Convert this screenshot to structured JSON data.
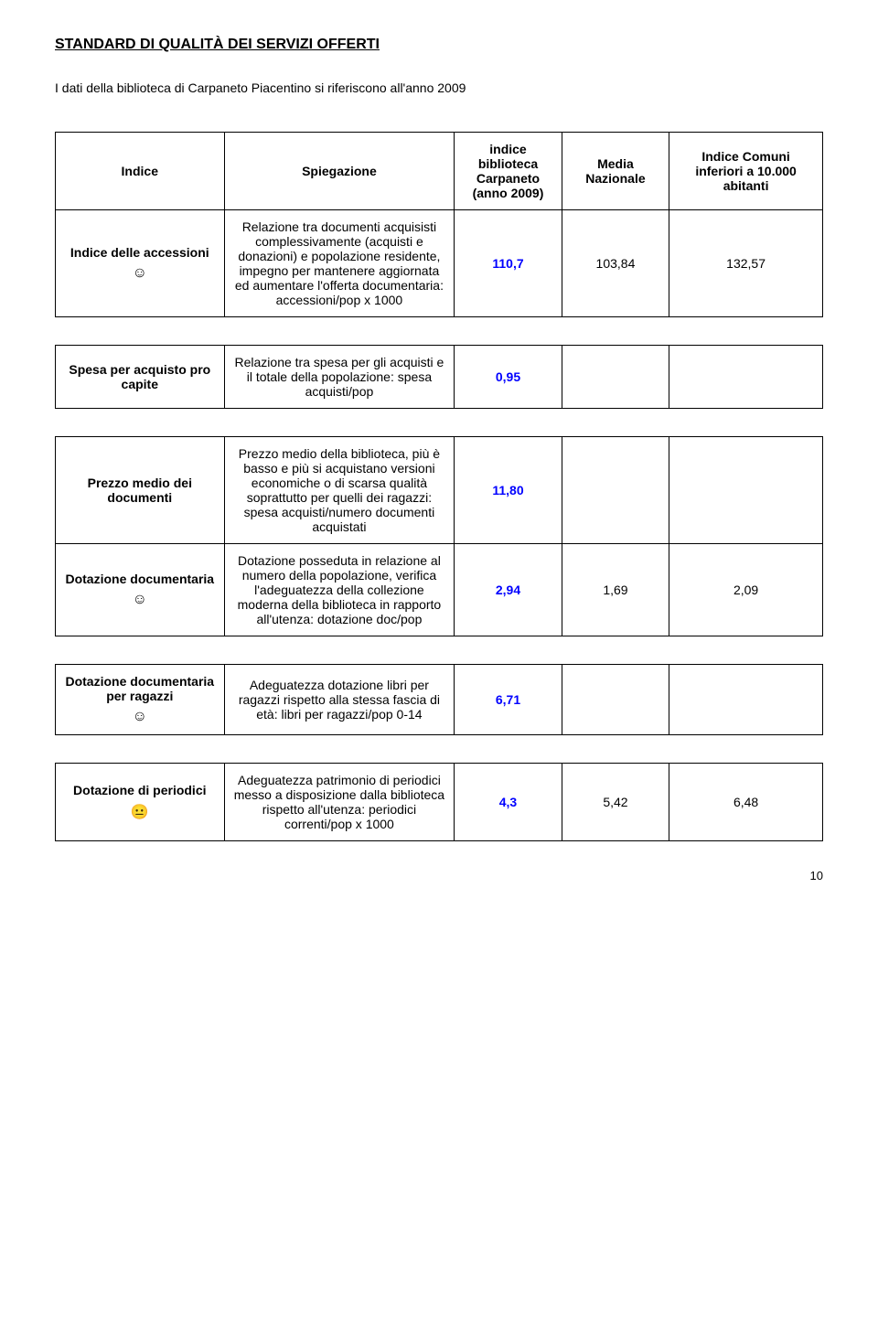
{
  "page": {
    "title": "STANDARD DI QUALITÀ DEI SERVIZI OFFERTI",
    "intro": "I dati della biblioteca di Carpaneto Piacentino si riferiscono all'anno 2009",
    "page_number": "10"
  },
  "headers": {
    "indice": "Indice",
    "spiegazione": "Spiegazione",
    "val": "indice biblioteca Carpaneto (anno 2009)",
    "media": "Media Nazionale",
    "comuni": "Indice Comuni inferiori a 10.000 abitanti"
  },
  "rows": {
    "accessioni": {
      "label": "Indice delle accessioni",
      "smiley": "☺",
      "spieg": "Relazione tra documenti acquisisti complessivamente (acquisti e donazioni) e popolazione residente, impegno per mantenere aggiornata ed aumentare l'offerta documentaria: accessioni/pop x 1000",
      "val": "110,7",
      "media": "103,84",
      "comuni": "132,57"
    },
    "spesa": {
      "label": "Spesa per acquisto pro capite",
      "spieg": "Relazione tra spesa per gli acquisti e il totale della popolazione: spesa acquisti/pop",
      "val": "0,95"
    },
    "prezzo": {
      "label": "Prezzo medio dei documenti",
      "spieg": "Prezzo medio della biblioteca, più è basso e più si acquistano versioni economiche o di scarsa qualità soprattutto per quelli dei ragazzi: spesa acquisti/numero documenti acquistati",
      "val": "11,80"
    },
    "dotazione": {
      "label": "Dotazione documentaria",
      "smiley": "☺",
      "spieg": "Dotazione posseduta in relazione al numero della popolazione, verifica l'adeguatezza della collezione moderna della biblioteca in rapporto all'utenza: dotazione doc/pop",
      "val": "2,94",
      "media": "1,69",
      "comuni": "2,09"
    },
    "dotazione_ragazzi": {
      "label": "Dotazione documentaria per ragazzi",
      "smiley": "☺",
      "spieg": "Adeguatezza dotazione libri per ragazzi rispetto alla stessa fascia di età: libri per ragazzi/pop 0-14",
      "val": "6,71"
    },
    "periodici": {
      "label": "Dotazione di periodici",
      "smiley": "😐",
      "spieg": "Adeguatezza patrimonio di periodici messo a disposizione dalla biblioteca rispetto all'utenza: periodici correnti/pop x 1000",
      "val": "4,3",
      "media": "5,42",
      "comuni": "6,48"
    }
  },
  "colors": {
    "blue": "#0000ff",
    "black": "#000000",
    "bg": "#ffffff"
  }
}
